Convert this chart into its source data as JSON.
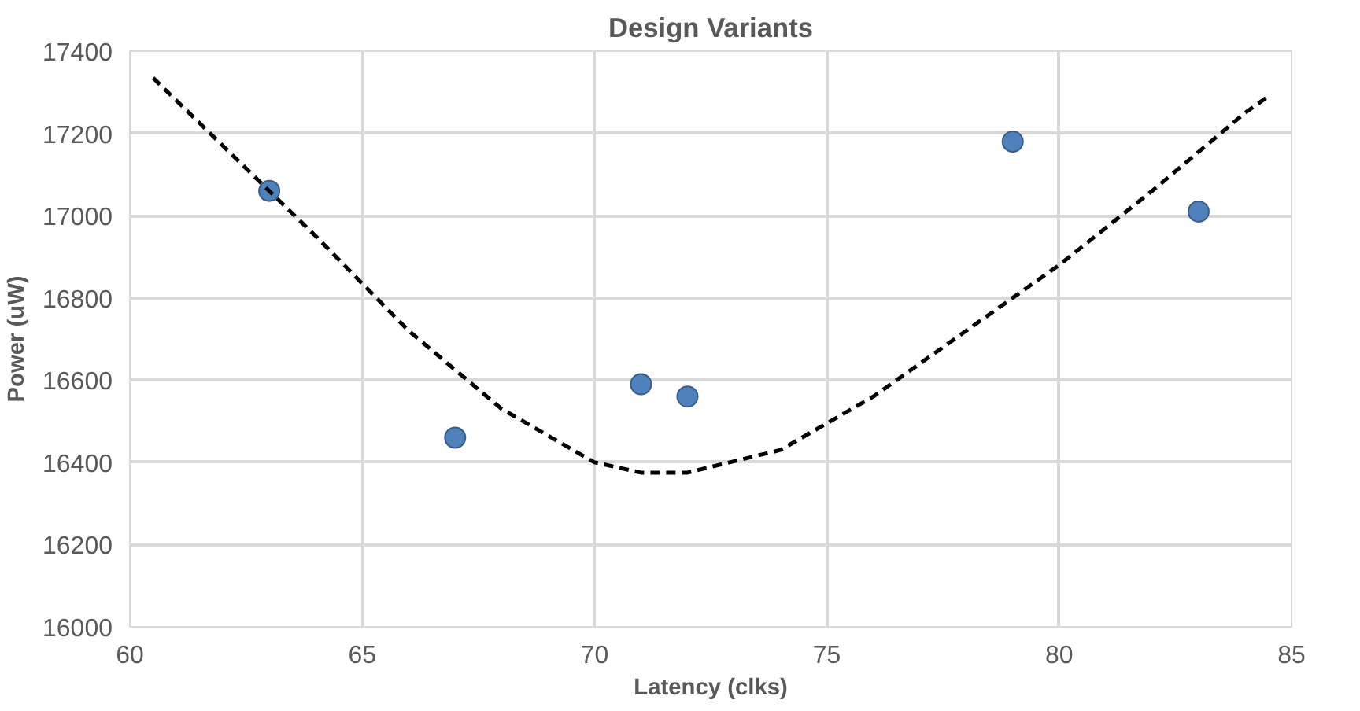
{
  "chart_data": {
    "type": "scatter",
    "title": "Design Variants",
    "xlabel": "Latency (clks)",
    "ylabel": "Power (uW)",
    "x": [
      63,
      67,
      71,
      72,
      79,
      83
    ],
    "series": [
      {
        "color": "#4f81bd",
        "values": [
          17060,
          16460,
          16590,
          16560,
          17180,
          17010
        ],
        "marker": "circle"
      },
      {
        "type": "line",
        "color": "#000000",
        "line_style": "dashed",
        "marker": "none",
        "x": [
          60.5,
          62,
          64,
          66,
          68,
          70,
          71,
          72,
          74,
          76,
          78,
          80,
          82,
          84,
          84.5
        ],
        "values": [
          17335,
          17170,
          16950,
          16720,
          16530,
          16400,
          16375,
          16375,
          16430,
          16560,
          16720,
          16880,
          17060,
          17250,
          17290
        ]
      }
    ],
    "xlim": [
      60,
      85
    ],
    "xticks": [
      60,
      65,
      70,
      75,
      80,
      85
    ],
    "ylim": [
      16000,
      17400
    ],
    "yticks": [
      16000,
      16200,
      16400,
      16600,
      16800,
      17000,
      17200,
      17400
    ],
    "grid": true
  }
}
